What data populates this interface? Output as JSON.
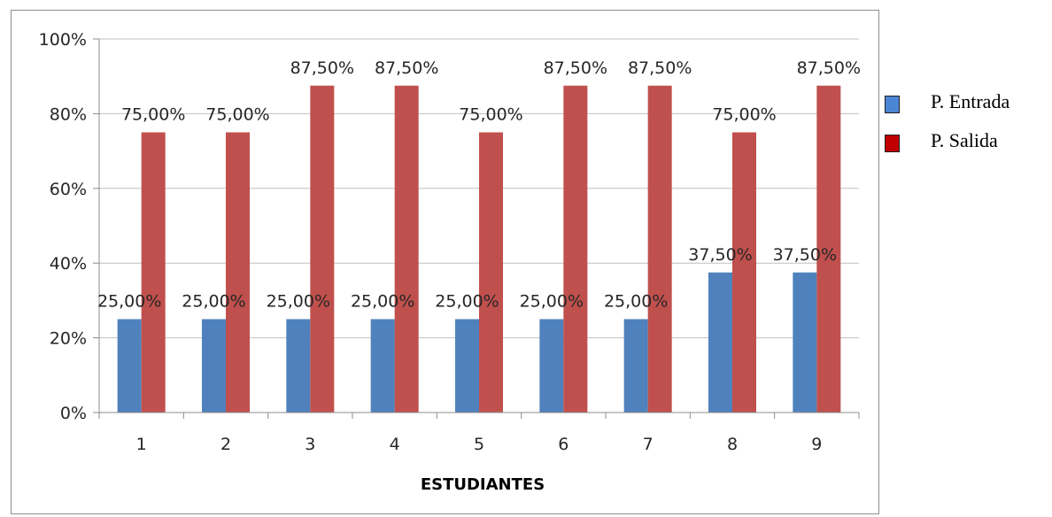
{
  "chart_data": {
    "type": "bar",
    "title": "",
    "xlabel": "ESTUDIANTES",
    "ylabel": "",
    "ylim": [
      0,
      100
    ],
    "yticks": [
      "0%",
      "20%",
      "40%",
      "60%",
      "80%",
      "100%"
    ],
    "categories": [
      "1",
      "2",
      "3",
      "4",
      "5",
      "6",
      "7",
      "8",
      "9"
    ],
    "series": [
      {
        "name": "P. Entrada",
        "color": "#4f81bd",
        "values": [
          25,
          25,
          25,
          25,
          25,
          25,
          25,
          37.5,
          37.5
        ],
        "labels": [
          "25,00%",
          "25,00%",
          "25,00%",
          "25,00%",
          "25,00%",
          "25,00%",
          "25,00%",
          "37,50%",
          "37,50%"
        ]
      },
      {
        "name": "P. Salida",
        "color": "#c0504d",
        "values": [
          75,
          75,
          87.5,
          87.5,
          75,
          87.5,
          87.5,
          75,
          87.5
        ],
        "labels": [
          "75,00%",
          "75,00%",
          "87,50%",
          "87,50%",
          "75,00%",
          "87,50%",
          "87,50%",
          "75,00%",
          "87,50%"
        ]
      }
    ],
    "gridlines": true,
    "legend_position": "right"
  },
  "legend": {
    "items": [
      {
        "label": "P. Entrada",
        "color": "#4a86d4"
      },
      {
        "label": "P. Salida",
        "color": "#c00000"
      }
    ]
  }
}
